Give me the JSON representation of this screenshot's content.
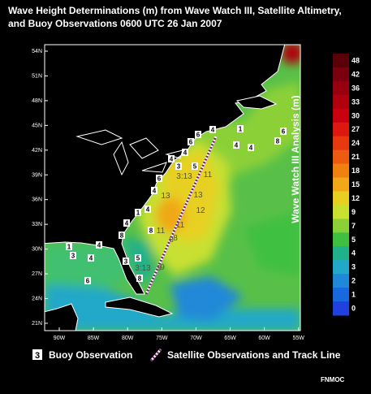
{
  "title": [
    "Wave Height Determinations (m) from Wave Watch III, Satellite Altimetry,",
    "and Buoy Observations 0600 UTC  26 Jan 2007"
  ],
  "colorbar": {
    "title": "Wave Watch III Analysis (m)",
    "levels": [
      "48",
      "42",
      "36",
      "33",
      "30",
      "27",
      "24",
      "21",
      "18",
      "15",
      "12",
      "9",
      "7",
      "5",
      "4",
      "3",
      "2",
      "1",
      "0"
    ],
    "colors": [
      "#5a0008",
      "#7a0010",
      "#980010",
      "#b00010",
      "#c80010",
      "#dc1810",
      "#e83810",
      "#ee5a10",
      "#f08010",
      "#f0a818",
      "#e8d020",
      "#c8e030",
      "#8cd038",
      "#40c040",
      "#20b08a",
      "#22a8c8",
      "#2088d8",
      "#1868e0",
      "#2040e0"
    ]
  },
  "axes": {
    "lat": [
      "54N",
      "51N",
      "48N",
      "45N",
      "42N",
      "39N",
      "36N",
      "33N",
      "30N",
      "27N",
      "24N",
      "21N"
    ],
    "lon": [
      "90W",
      "85W",
      "80W",
      "75W",
      "70W",
      "65W",
      "60W",
      "55W"
    ]
  },
  "buoys": [
    "1",
    "3",
    "4",
    "6",
    "4",
    "3",
    "5",
    "8",
    "8",
    "4",
    "1",
    "4",
    "4",
    "8",
    "6",
    "4",
    "3",
    "4",
    "6",
    "6",
    "4",
    "1",
    "4",
    "4",
    "6",
    "8",
    "5"
  ],
  "track": [
    "3:13",
    "11",
    "13",
    "12",
    "11",
    "8",
    "9",
    "3:13",
    "13",
    "11",
    "8",
    "9"
  ],
  "legend": {
    "buoy_symbol": "3",
    "buoy": "Buoy Observation",
    "track": "Satellite Observations and Track Line"
  },
  "credit": "FNMOC"
}
